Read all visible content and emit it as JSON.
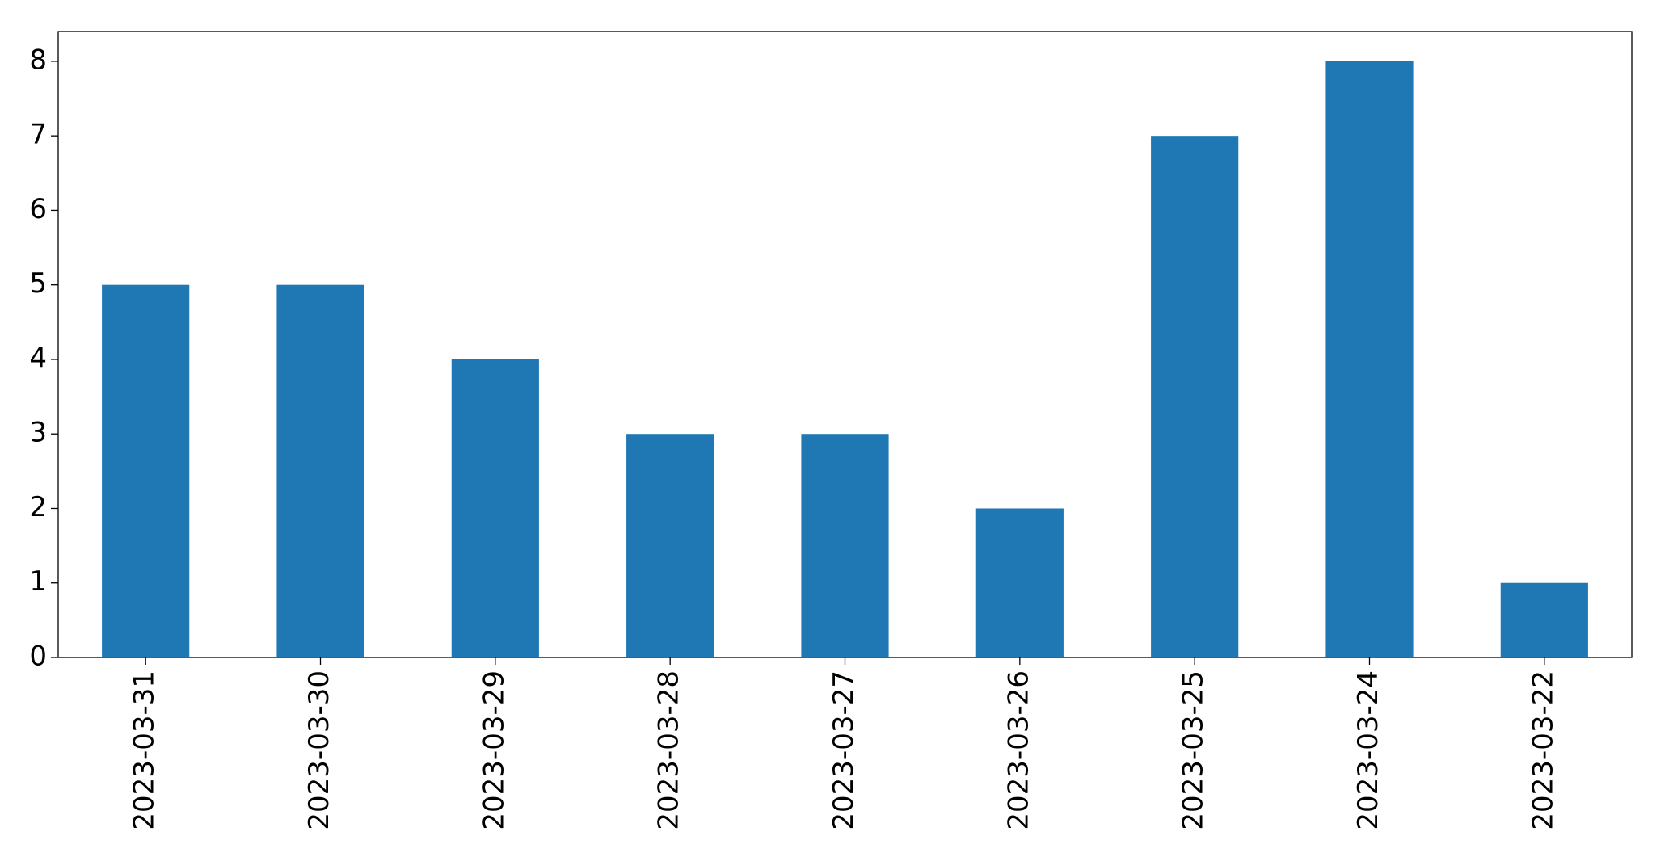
{
  "chart_data": {
    "type": "bar",
    "categories": [
      "2023-03-31",
      "2023-03-30",
      "2023-03-29",
      "2023-03-28",
      "2023-03-27",
      "2023-03-26",
      "2023-03-25",
      "2023-03-24",
      "2023-03-22"
    ],
    "values": [
      5,
      5,
      4,
      3,
      3,
      2,
      7,
      8,
      1
    ],
    "color": "#1f77b4",
    "ylim": [
      0,
      8.4
    ],
    "yticks": [
      0,
      1,
      2,
      3,
      4,
      5,
      6,
      7,
      8
    ],
    "grid": false
  }
}
